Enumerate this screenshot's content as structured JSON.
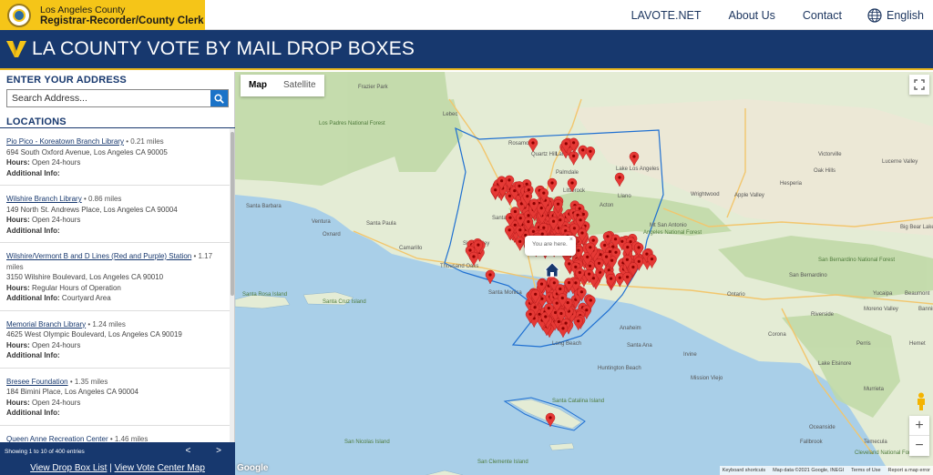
{
  "header": {
    "brand_line1": "Los Angeles County",
    "brand_line2": "Registrar-Recorder/County Clerk",
    "nav": [
      {
        "label": "LAVOTE.NET"
      },
      {
        "label": "About Us"
      },
      {
        "label": "Contact"
      }
    ],
    "language": "English"
  },
  "page_title": "LA COUNTY VOTE BY MAIL DROP BOXES",
  "sidebar": {
    "address_heading": "ENTER YOUR ADDRESS",
    "search_placeholder": "Search Address...",
    "locations_heading": "LOCATIONS",
    "hours_label": "Hours:",
    "info_label": "Additional Info:",
    "locations": [
      {
        "name": "Pio Pico - Koreatown Branch Library",
        "distance": "• 0.21 miles",
        "address": "694 South Oxford Avenue, Los Angeles CA 90005",
        "hours": "Open 24-hours",
        "info": ""
      },
      {
        "name": "Wilshire Branch Library",
        "distance": "• 0.86 miles",
        "address": "149 North St. Andrews Place, Los Angeles CA 90004",
        "hours": "Open 24-hours",
        "info": ""
      },
      {
        "name": "Wilshire/Vermont B and D Lines (Red and Purple) Station",
        "distance": "• 1.17 miles",
        "address": "3150 Wilshire Boulevard, Los Angeles CA 90010",
        "hours": "Regular Hours of Operation",
        "info": "Courtyard Area"
      },
      {
        "name": "Memorial Branch Library",
        "distance": "• 1.24 miles",
        "address": "4625 West Olympic Boulevard, Los Angeles CA 90019",
        "hours": "Open 24-hours",
        "info": ""
      },
      {
        "name": "Bresee Foundation",
        "distance": "• 1.35 miles",
        "address": "184 Bimini Place, Los Angeles CA 90004",
        "hours": "Open 24-hours",
        "info": ""
      },
      {
        "name": "Queen Anne Recreation Center",
        "distance": "• 1.46 miles",
        "address": "",
        "hours": "",
        "info": ""
      }
    ],
    "pager_text": "Showing 1 to 10 of 400 entries",
    "prev": "<",
    "next": ">",
    "footer_link1": "View Drop Box List",
    "footer_sep": " | ",
    "footer_link2": "View Vote Center Map"
  },
  "map": {
    "type_map": "Map",
    "type_satellite": "Satellite",
    "popup_text": "You are here.",
    "popup_close": "×",
    "google": "Google",
    "attrib": [
      "Keyboard shortcuts",
      "Map data ©2021 Google, INEGI",
      "Terms of Use",
      "Report a map error"
    ],
    "zoom_in": "+",
    "zoom_out": "−",
    "labels": [
      {
        "t": "Lebec"
      },
      {
        "t": "Lancaster"
      },
      {
        "t": "Palmdale"
      },
      {
        "t": "Lake Los Angeles"
      },
      {
        "t": "Littlerock"
      },
      {
        "t": "Llano"
      },
      {
        "t": "Apple Valley"
      },
      {
        "t": "Hesperia"
      },
      {
        "t": "Santa Clarita"
      },
      {
        "t": "Simi Valley"
      },
      {
        "t": "Thousand Oaks"
      },
      {
        "t": "Santa Monica"
      },
      {
        "t": "Long Beach"
      },
      {
        "t": "Anaheim"
      },
      {
        "t": "Santa Ana"
      },
      {
        "t": "Huntington Beach"
      },
      {
        "t": "Irvine"
      },
      {
        "t": "San Bernardino"
      },
      {
        "t": "Riverside"
      },
      {
        "t": "Ontario"
      },
      {
        "t": "Temecula"
      },
      {
        "t": "Oxnard"
      },
      {
        "t": "Ventura"
      },
      {
        "t": "Santa Barbara"
      },
      {
        "t": "Santa Cruz Island"
      },
      {
        "t": "Santa Rosa Island"
      },
      {
        "t": "Santa Catalina Island"
      },
      {
        "t": "San Bernardino National Forest"
      },
      {
        "t": "Angeles National Forest"
      },
      {
        "t": "Los Padres National Forest"
      },
      {
        "t": "Cleveland National Forest"
      },
      {
        "t": "Mt San Antonio"
      },
      {
        "t": "Victorville"
      },
      {
        "t": "Quartz Hill"
      },
      {
        "t": "Santa Paula"
      },
      {
        "t": "Moreno Valley"
      },
      {
        "t": "Corona"
      },
      {
        "t": "Mission Viejo"
      },
      {
        "t": "Hemet"
      },
      {
        "t": "Perris"
      },
      {
        "t": "San Nicolas Island"
      },
      {
        "t": "San Clemente Island"
      },
      {
        "t": "Lake Elsinore"
      },
      {
        "t": "Oceanside"
      },
      {
        "t": "Oak Hills"
      },
      {
        "t": "Wrightwood"
      },
      {
        "t": "Frazier Park"
      },
      {
        "t": "Camarillo"
      },
      {
        "t": "Rosamond"
      },
      {
        "t": "Acton"
      },
      {
        "t": "Lucerne Valley"
      },
      {
        "t": "Big Bear Lake"
      },
      {
        "t": "Yucaipa"
      },
      {
        "t": "Beaumont"
      },
      {
        "t": "Banning"
      },
      {
        "t": "Murrieta"
      },
      {
        "t": "Fallbrook"
      }
    ]
  },
  "colors": {
    "navy": "#17386e",
    "gold": "#f5c518",
    "marker": "#e53935",
    "water": "#a9cfe8",
    "land": "#e4ecd5"
  }
}
